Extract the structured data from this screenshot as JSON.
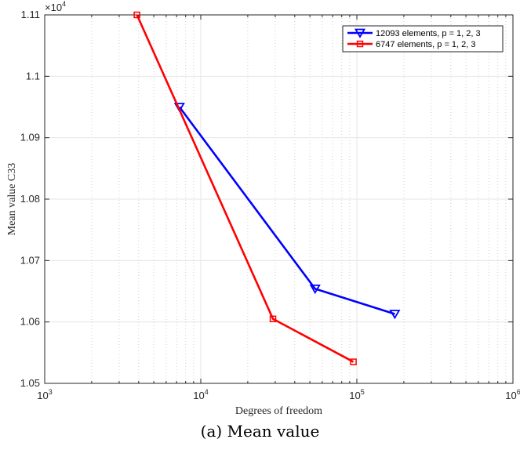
{
  "caption": "(a) Mean value",
  "chart_data": {
    "type": "line",
    "xscale": "log",
    "xlim": [
      1000,
      1000000
    ],
    "ylim": [
      10500,
      11100
    ],
    "y_exponent_label": "×10",
    "y_exponent_power": "4",
    "xlabel": "Degrees of freedom",
    "ylabel": "Mean value C33",
    "grid": true,
    "legend_position": "top-right",
    "x_tick_labels": [
      {
        "base": "10",
        "exp": "3",
        "value": 1000
      },
      {
        "base": "10",
        "exp": "4",
        "value": 10000
      },
      {
        "base": "10",
        "exp": "5",
        "value": 100000
      },
      {
        "base": "10",
        "exp": "6",
        "value": 1000000
      }
    ],
    "y_tick_labels": [
      {
        "label": "1.05",
        "value": 10500
      },
      {
        "label": "1.06",
        "value": 10600
      },
      {
        "label": "1.07",
        "value": 10700
      },
      {
        "label": "1.08",
        "value": 10800
      },
      {
        "label": "1.09",
        "value": 10900
      },
      {
        "label": "1.1",
        "value": 11000
      },
      {
        "label": "1.11",
        "value": 11100
      }
    ],
    "series": [
      {
        "name": "12093 elements, p = 1, 2, 3",
        "color": "#0000ff",
        "marker": "triangle-down",
        "x": [
          7300,
          54000,
          175000
        ],
        "y": [
          10950,
          10654,
          10613
        ]
      },
      {
        "name": "6747 elements, p = 1, 2, 3",
        "color": "#ff0000",
        "marker": "square",
        "x": [
          3900,
          29000,
          95000
        ],
        "y": [
          11100,
          10605,
          10535
        ]
      }
    ]
  }
}
